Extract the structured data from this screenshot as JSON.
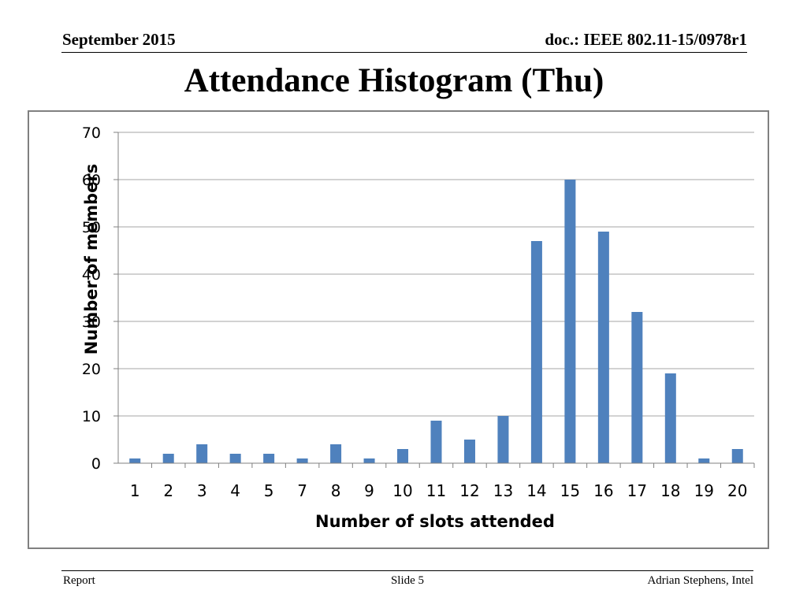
{
  "header": {
    "date": "September 2015",
    "doc": "doc.: IEEE 802.11-15/0978r1"
  },
  "slide": {
    "title": "Attendance Histogram (Thu)"
  },
  "footer": {
    "left": "Report",
    "center": "Slide 5",
    "right": "Adrian Stephens, Intel"
  },
  "colors": {
    "bar": "#4f81bd",
    "grid": "#a6a6a6"
  },
  "chart_data": {
    "type": "bar",
    "title": "",
    "xlabel": "Number of slots attended",
    "ylabel": "Number of members",
    "ylim": [
      0,
      70
    ],
    "yticks": [
      0,
      10,
      20,
      30,
      40,
      50,
      60,
      70
    ],
    "grid": true,
    "legend": "none",
    "categories": [
      "1",
      "2",
      "3",
      "4",
      "5",
      "7",
      "8",
      "9",
      "10",
      "11",
      "12",
      "13",
      "14",
      "15",
      "16",
      "17",
      "18",
      "19",
      "20"
    ],
    "values": [
      1,
      2,
      4,
      2,
      2,
      1,
      4,
      1,
      3,
      9,
      5,
      10,
      47,
      60,
      49,
      32,
      19,
      1,
      3
    ]
  }
}
